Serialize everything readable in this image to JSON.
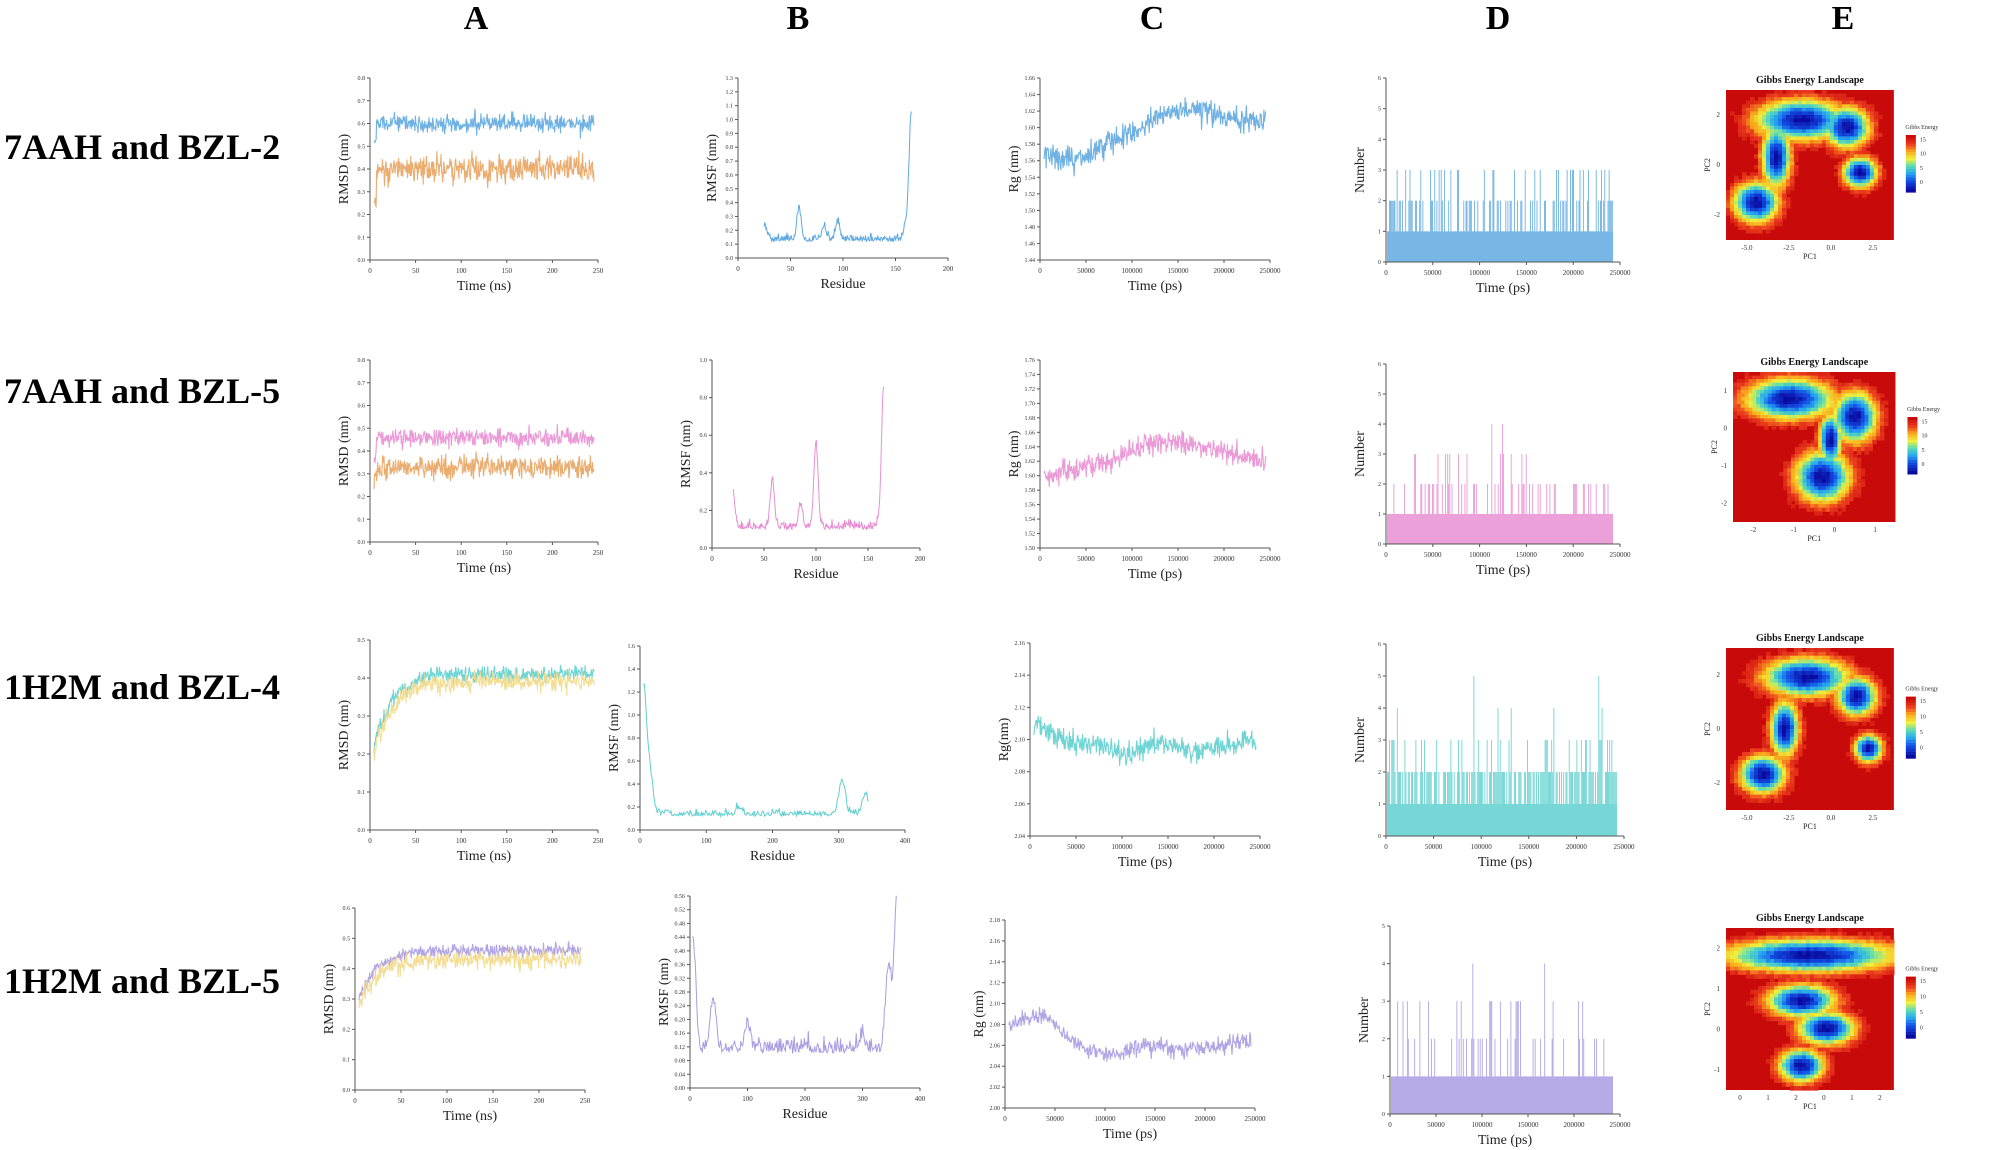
{
  "column_headers": [
    "A",
    "B",
    "C",
    "D",
    "E"
  ],
  "rows": [
    {
      "label": "7AAH and BZL-2"
    },
    {
      "label": "7AAH and BZL-5"
    },
    {
      "label": "1H2M and BZL-4"
    },
    {
      "label": "1H2M and BZL-5"
    }
  ],
  "colors": {
    "blue": "#5fa9e0",
    "orange": "#e8a35f",
    "pink": "#e88fd2",
    "teal": "#5fcfcf",
    "yellow": "#f2d98a",
    "purple": "#a99be3"
  },
  "chart_data": [
    {
      "panel": "A1",
      "type": "line",
      "xlabel": "Time (ns)",
      "ylabel": "RMSD (nm)",
      "xticks": [
        "0",
        "50",
        "100",
        "150",
        "200",
        "250"
      ],
      "xlim": [
        0,
        250
      ],
      "ylim": [
        0,
        0.8
      ],
      "yticks": [
        "0.0",
        "0.1",
        "0.2",
        "0.3",
        "0.4",
        "0.5",
        "0.6",
        "0.7",
        "0.8"
      ],
      "series": [
        {
          "name": "protein",
          "color": "blue",
          "level": 0.6,
          "noise": 0.04,
          "start": 0.55
        },
        {
          "name": "ligand",
          "color": "orange",
          "level": 0.4,
          "noise": 0.06,
          "start": 0.25
        }
      ]
    },
    {
      "panel": "B1",
      "type": "line",
      "xlabel": "Residue",
      "ylabel": "RMSF (nm)",
      "xticks": [
        "0",
        "50",
        "100",
        "150",
        "200"
      ],
      "xlim": [
        0,
        200
      ],
      "ylim": [
        0,
        1.3
      ],
      "yticks": [
        "0.0",
        "0.1",
        "0.2",
        "0.3",
        "0.4",
        "0.5",
        "0.6",
        "0.7",
        "0.8",
        "0.9",
        "1.0",
        "1.1",
        "1.2",
        "1.3"
      ],
      "series": [
        {
          "name": "rmsf",
          "color": "blue",
          "xstart": 25,
          "xend": 165,
          "base": 0.12,
          "peaks": [
            [
              25,
              0.22
            ],
            [
              58,
              0.35
            ],
            [
              82,
              0.22
            ],
            [
              95,
              0.25
            ],
            [
              130,
              0.12
            ],
            [
              160,
              0.25
            ],
            [
              165,
              1.05
            ]
          ]
        }
      ]
    },
    {
      "panel": "C1",
      "type": "line",
      "xlabel": "Time (ps)",
      "ylabel": "Rg (nm)",
      "xticks": [
        "0",
        "50000",
        "100000",
        "150000",
        "200000",
        "250000"
      ],
      "xlim": [
        0,
        250000
      ],
      "ylim": [
        1.44,
        1.66
      ],
      "yticks": [
        "1.44",
        "1.46",
        "1.48",
        "1.50",
        "1.52",
        "1.54",
        "1.56",
        "1.58",
        "1.60",
        "1.62",
        "1.64",
        "1.66"
      ],
      "series": [
        {
          "name": "rg",
          "color": "blue",
          "levels": [
            1.57,
            1.56,
            1.58,
            1.6,
            1.62,
            1.62,
            1.61,
            1.61
          ],
          "noise": 0.015
        }
      ]
    },
    {
      "panel": "D1",
      "type": "bar",
      "xlabel": "Time (ps)",
      "ylabel": "Number",
      "xticks": [
        "0",
        "50000",
        "100000",
        "150000",
        "200000",
        "250000"
      ],
      "xlim": [
        0,
        250000
      ],
      "ylim": [
        0,
        6
      ],
      "yticks": [
        "0",
        "1",
        "2",
        "3",
        "4",
        "5",
        "6"
      ],
      "series": [
        {
          "name": "hbonds",
          "color": "blue",
          "probs": [
            0.05,
            0.55,
            0.3,
            0.1
          ],
          "max": 3
        }
      ]
    },
    {
      "panel": "E1",
      "type": "heatmap",
      "title": "Gibbs Energy Landscape",
      "xlabel": "PC1",
      "ylabel": "PC2",
      "colorbar_label": "Gibbs Energy",
      "colorbar_ticks": [
        "15",
        "10",
        "5",
        "0"
      ],
      "xticks": [
        "-5.0",
        "-2.5",
        "0.0",
        "2.5"
      ],
      "yticks": [
        "2",
        "0",
        "-2"
      ],
      "minima": [
        [
          0.45,
          0.2,
          0.16,
          0.08
        ],
        [
          0.72,
          0.25,
          0.08,
          0.08
        ],
        [
          0.8,
          0.55,
          0.06,
          0.06
        ],
        [
          0.18,
          0.75,
          0.08,
          0.08
        ],
        [
          0.3,
          0.45,
          0.05,
          0.12
        ]
      ]
    },
    {
      "panel": "A2",
      "type": "line",
      "xlabel": "Time (ns)",
      "ylabel": "RMSD (nm)",
      "xticks": [
        "0",
        "50",
        "100",
        "150",
        "200",
        "250"
      ],
      "xlim": [
        0,
        250
      ],
      "ylim": [
        0,
        0.8
      ],
      "yticks": [
        "0.0",
        "0.1",
        "0.2",
        "0.3",
        "0.4",
        "0.5",
        "0.6",
        "0.7",
        "0.8"
      ],
      "series": [
        {
          "name": "protein",
          "color": "pink",
          "level": 0.46,
          "noise": 0.04,
          "start": 0.35
        },
        {
          "name": "ligand",
          "color": "orange",
          "level": 0.33,
          "noise": 0.05,
          "start": 0.28
        }
      ]
    },
    {
      "panel": "B2",
      "type": "line",
      "xlabel": "Residue",
      "ylabel": "RMSF (nm)",
      "xticks": [
        "0",
        "50",
        "100",
        "150",
        "200"
      ],
      "xlim": [
        0,
        200
      ],
      "ylim": [
        0,
        1.0
      ],
      "yticks": [
        "0.0",
        "0.2",
        "0.4",
        "0.6",
        "0.8",
        "1.0"
      ],
      "series": [
        {
          "name": "rmsf",
          "color": "pink",
          "xstart": 20,
          "xend": 165,
          "base": 0.1,
          "peaks": [
            [
              20,
              0.3
            ],
            [
              58,
              0.35
            ],
            [
              85,
              0.22
            ],
            [
              100,
              0.55
            ],
            [
              130,
              0.1
            ],
            [
              160,
              0.12
            ],
            [
              165,
              0.85
            ]
          ]
        }
      ]
    },
    {
      "panel": "C2",
      "type": "line",
      "xlabel": "Time (ps)",
      "ylabel": "Rg (nm)",
      "xticks": [
        "0",
        "50000",
        "100000",
        "150000",
        "200000",
        "250000"
      ],
      "xlim": [
        0,
        250000
      ],
      "ylim": [
        1.5,
        1.76
      ],
      "yticks": [
        "1.50",
        "1.52",
        "1.54",
        "1.56",
        "1.58",
        "1.60",
        "1.62",
        "1.64",
        "1.66",
        "1.68",
        "1.70",
        "1.72",
        "1.74",
        "1.76"
      ],
      "series": [
        {
          "name": "rg",
          "color": "pink",
          "levels": [
            1.6,
            1.61,
            1.62,
            1.64,
            1.65,
            1.64,
            1.63,
            1.62
          ],
          "noise": 0.015
        }
      ]
    },
    {
      "panel": "D2",
      "type": "bar",
      "xlabel": "Time (ps)",
      "ylabel": "Number",
      "xticks": [
        "0",
        "50000",
        "100000",
        "150000",
        "200000",
        "250000"
      ],
      "xlim": [
        0,
        250000
      ],
      "ylim": [
        0,
        6
      ],
      "yticks": [
        "0",
        "1",
        "2",
        "3",
        "4",
        "5",
        "6"
      ],
      "series": [
        {
          "name": "hbonds",
          "color": "pink",
          "probs": [
            0.05,
            0.7,
            0.2,
            0.05
          ],
          "max": 4
        }
      ]
    },
    {
      "panel": "E2",
      "type": "heatmap",
      "title": "Gibbs Energy Landscape",
      "xlabel": "PC1",
      "ylabel": "PC2",
      "colorbar_label": "Gibbs Energy",
      "colorbar_ticks": [
        "15",
        "10",
        "5",
        "0"
      ],
      "xticks": [
        "-2",
        "-1",
        "0",
        "1"
      ],
      "yticks": [
        "1",
        "0",
        "-1",
        "-2"
      ],
      "minima": [
        [
          0.35,
          0.18,
          0.16,
          0.08
        ],
        [
          0.75,
          0.3,
          0.08,
          0.1
        ],
        [
          0.55,
          0.7,
          0.1,
          0.1
        ],
        [
          0.6,
          0.45,
          0.04,
          0.1
        ]
      ]
    },
    {
      "panel": "A3",
      "type": "line",
      "xlabel": "Time (ns)",
      "ylabel": "RMSD (nm)",
      "xticks": [
        "0",
        "50",
        "100",
        "150",
        "200",
        "250"
      ],
      "xlim": [
        0,
        250
      ],
      "ylim": [
        0,
        0.5
      ],
      "yticks": [
        "0.0",
        "0.1",
        "0.2",
        "0.3",
        "0.4",
        "0.5"
      ],
      "series": [
        {
          "name": "protein",
          "color": "teal",
          "level": 0.41,
          "noise": 0.02,
          "start": 0.22,
          "rise": true
        },
        {
          "name": "ligand",
          "color": "yellow",
          "level": 0.39,
          "noise": 0.025,
          "start": 0.2,
          "rise": true
        }
      ]
    },
    {
      "panel": "B3",
      "type": "line",
      "xlabel": "Residue",
      "ylabel": "RMSF (nm)",
      "xticks": [
        "0",
        "100",
        "200",
        "300",
        "400"
      ],
      "xlim": [
        0,
        400
      ],
      "ylim": [
        0,
        1.6
      ],
      "yticks": [
        "0.0",
        "0.2",
        "0.4",
        "0.6",
        "0.8",
        "1.0",
        "1.2",
        "1.4",
        "1.6"
      ],
      "series": [
        {
          "name": "rmsf",
          "color": "teal",
          "xstart": 5,
          "xend": 345,
          "base": 0.12,
          "peaks": [
            [
              5,
              1.2
            ],
            [
              15,
              0.45
            ],
            [
              40,
              0.15
            ],
            [
              150,
              0.18
            ],
            [
              250,
              0.12
            ],
            [
              305,
              0.42
            ],
            [
              340,
              0.3
            ]
          ]
        }
      ]
    },
    {
      "panel": "C3",
      "type": "line",
      "xlabel": "Time (ps)",
      "ylabel": "Rg(nm)",
      "xticks": [
        "0",
        "50000",
        "100000",
        "150000",
        "200000",
        "250000"
      ],
      "xlim": [
        0,
        250000
      ],
      "ylim": [
        2.02,
        2.16
      ],
      "yticks": [
        "2.04",
        "2.06",
        "2.08",
        "2.10",
        "2.12",
        "2.14",
        "2.16"
      ],
      "series": [
        {
          "name": "rg",
          "color": "teal",
          "levels": [
            2.1,
            2.09,
            2.085,
            2.08,
            2.09,
            2.08,
            2.085,
            2.09
          ],
          "noise": 0.008
        }
      ]
    },
    {
      "panel": "D3",
      "type": "bar",
      "xlabel": "Time (ps)",
      "ylabel": "Number",
      "xticks": [
        "0",
        "50000",
        "100000",
        "150000",
        "200000",
        "250000"
      ],
      "xlim": [
        0,
        250000
      ],
      "ylim": [
        0,
        6
      ],
      "yticks": [
        "0",
        "1",
        "2",
        "3",
        "4",
        "5",
        "6"
      ],
      "series": [
        {
          "name": "hbonds",
          "color": "teal",
          "probs": [
            0.02,
            0.3,
            0.5,
            0.18
          ],
          "max": 5
        }
      ]
    },
    {
      "panel": "E3",
      "type": "heatmap",
      "title": "Gibbs Energy Landscape",
      "xlabel": "PC1",
      "ylabel": "PC2",
      "colorbar_label": "Gibbs Energy",
      "colorbar_ticks": [
        "15",
        "10",
        "5",
        "0"
      ],
      "xticks": [
        "-5.0",
        "-2.5",
        "0.0",
        "2.5"
      ],
      "yticks": [
        "2",
        "0",
        "-2"
      ],
      "minima": [
        [
          0.48,
          0.18,
          0.15,
          0.07
        ],
        [
          0.78,
          0.3,
          0.07,
          0.07
        ],
        [
          0.85,
          0.62,
          0.05,
          0.05
        ],
        [
          0.22,
          0.78,
          0.08,
          0.07
        ],
        [
          0.35,
          0.5,
          0.05,
          0.1
        ]
      ]
    },
    {
      "panel": "A4",
      "type": "line",
      "xlabel": "Time (ns)",
      "ylabel": "RMSD (nm)",
      "xticks": [
        "0",
        "50",
        "100",
        "150",
        "200",
        "250"
      ],
      "xlim": [
        0,
        250
      ],
      "ylim": [
        0,
        0.6
      ],
      "yticks": [
        "0.0",
        "0.1",
        "0.2",
        "0.3",
        "0.4",
        "0.5",
        "0.6"
      ],
      "series": [
        {
          "name": "protein",
          "color": "purple",
          "level": 0.46,
          "noise": 0.02,
          "start": 0.3,
          "rise": true
        },
        {
          "name": "ligand",
          "color": "yellow",
          "level": 0.43,
          "noise": 0.03,
          "start": 0.28,
          "rise": true
        }
      ]
    },
    {
      "panel": "B4",
      "type": "line",
      "xlabel": "Residue",
      "ylabel": "RMSF (nm)",
      "xticks": [
        "0",
        "100",
        "200",
        "300",
        "400"
      ],
      "xlim": [
        0,
        400
      ],
      "ylim": [
        0,
        0.56
      ],
      "yticks": [
        "0.00",
        "0.04",
        "0.08",
        "0.12",
        "0.16",
        "0.20",
        "0.24",
        "0.28",
        "0.32",
        "0.36",
        "0.40",
        "0.44",
        "0.48",
        "0.52",
        "0.56"
      ],
      "series": [
        {
          "name": "rmsf",
          "color": "purple",
          "xstart": 5,
          "xend": 360,
          "base": 0.1,
          "peaks": [
            [
              5,
              0.42
            ],
            [
              40,
              0.25
            ],
            [
              100,
              0.18
            ],
            [
              200,
              0.12
            ],
            [
              300,
              0.14
            ],
            [
              345,
              0.35
            ],
            [
              360,
              0.54
            ]
          ]
        }
      ]
    },
    {
      "panel": "C4",
      "type": "line",
      "xlabel": "Time (ps)",
      "ylabel": "Rg (nm)",
      "xticks": [
        "0",
        "50000",
        "100000",
        "150000",
        "200000",
        "250000"
      ],
      "xlim": [
        0,
        250000
      ],
      "ylim": [
        2.0,
        2.18
      ],
      "yticks": [
        "2.00",
        "2.02",
        "2.04",
        "2.06",
        "2.08",
        "2.10",
        "2.12",
        "2.14",
        "2.16",
        "2.18"
      ],
      "series": [
        {
          "name": "rg",
          "color": "purple",
          "levels": [
            2.08,
            2.09,
            2.06,
            2.05,
            2.06,
            2.055,
            2.06,
            2.065
          ],
          "noise": 0.008
        }
      ]
    },
    {
      "panel": "D4",
      "type": "bar",
      "xlabel": "Time (ps)",
      "ylabel": "Number",
      "xticks": [
        "0",
        "50000",
        "100000",
        "150000",
        "200000",
        "250000"
      ],
      "xlim": [
        0,
        250000
      ],
      "ylim": [
        0,
        5
      ],
      "yticks": [
        "0",
        "1",
        "2",
        "3",
        "4",
        "5"
      ],
      "series": [
        {
          "name": "hbonds",
          "color": "purple",
          "probs": [
            0.05,
            0.75,
            0.15,
            0.05
          ],
          "max": 4
        }
      ]
    },
    {
      "panel": "E4",
      "type": "heatmap",
      "title": "Gibbs Energy Landscape",
      "xlabel": "PC1",
      "ylabel": "PC2",
      "colorbar_label": "Gibbs Energy",
      "colorbar_ticks": [
        "15",
        "10",
        "5",
        "0"
      ],
      "xticks": [
        "0",
        "1",
        "2",
        "0",
        "1",
        "2"
      ],
      "yticks": [
        "2",
        "1",
        "0",
        "-1"
      ],
      "minima": [
        [
          0.5,
          0.17,
          0.3,
          0.06
        ],
        [
          0.45,
          0.45,
          0.12,
          0.06
        ],
        [
          0.6,
          0.62,
          0.1,
          0.06
        ],
        [
          0.45,
          0.85,
          0.08,
          0.06
        ]
      ]
    }
  ]
}
